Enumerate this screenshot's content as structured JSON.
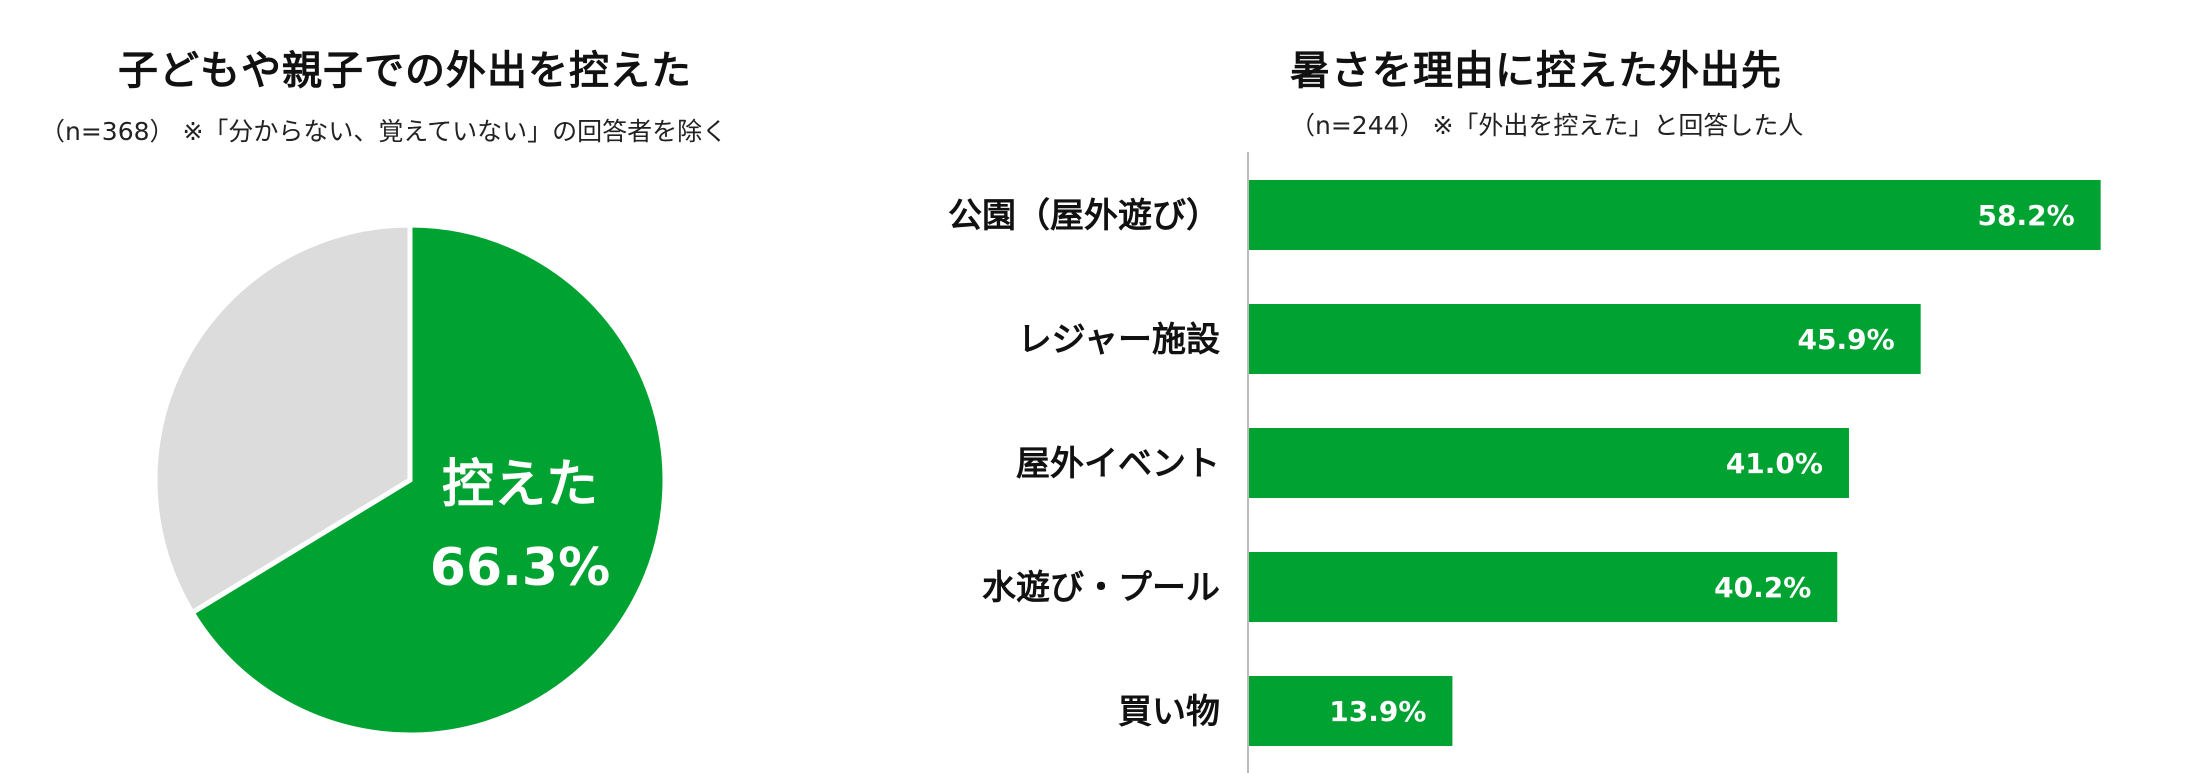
{
  "colors": {
    "primary": "#00A232",
    "secondary": "#DCDCDC",
    "axis": "#BBBBBB"
  },
  "chart_data": [
    {
      "type": "pie",
      "title": "子どもや親子での外出を控えた",
      "subtitle": "（n=368） ※「分からない、覚えていない」の回答者を除く",
      "slices": [
        {
          "label": "控えた",
          "value": 66.3,
          "display": "66.3%"
        },
        {
          "label": "",
          "value": 33.7
        }
      ]
    },
    {
      "type": "bar",
      "orientation": "horizontal",
      "title": "暑さを理由に控えた外出先",
      "subtitle": "（n=244） ※「外出を控えた」と回答した人",
      "categories": [
        "公園（屋外遊び）",
        "レジャー施設",
        "屋外イベント",
        "水遊び・プール",
        "買い物"
      ],
      "values": [
        58.2,
        45.9,
        41.0,
        40.2,
        13.9
      ],
      "value_labels": [
        "58.2%",
        "45.9%",
        "41.0%",
        "40.2%",
        "13.9%"
      ],
      "xlim": [
        0,
        60
      ]
    }
  ]
}
